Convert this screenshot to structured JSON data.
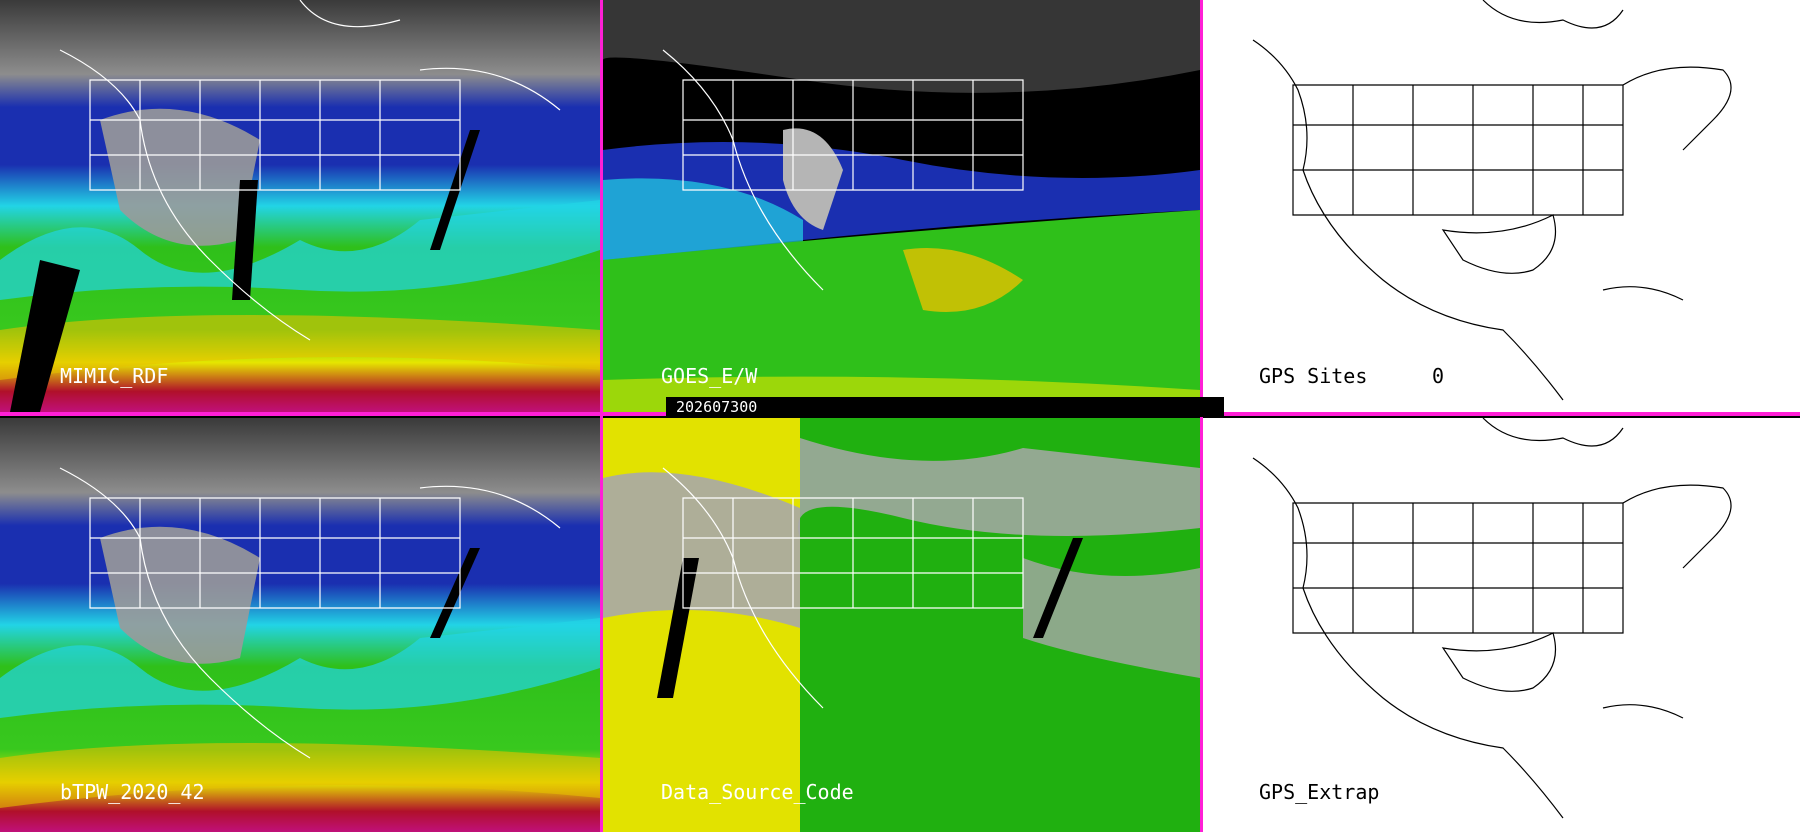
{
  "panels": [
    {
      "label": "MIMIC_RDF"
    },
    {
      "label": "GOES_E/W"
    },
    {
      "label": "GPS Sites"
    },
    {
      "label": "bTPW_2020_42"
    },
    {
      "label": "Data_Source_Code"
    },
    {
      "label": "GPS_Extrap"
    }
  ],
  "gps_sites_count": "0",
  "timestamp": "202607300",
  "colors": {
    "divider": "#ff1fd6",
    "tpw_dry_gray": "#8a8a8a",
    "tpw_blue": "#1a2fb0",
    "tpw_cyan": "#22d4e6",
    "tpw_green": "#2fc01a",
    "tpw_yellow": "#e6e600",
    "tpw_red": "#b0102a",
    "source_gray": "#a8a8a8",
    "source_yellow": "#e2e200",
    "source_green": "#20b010"
  }
}
